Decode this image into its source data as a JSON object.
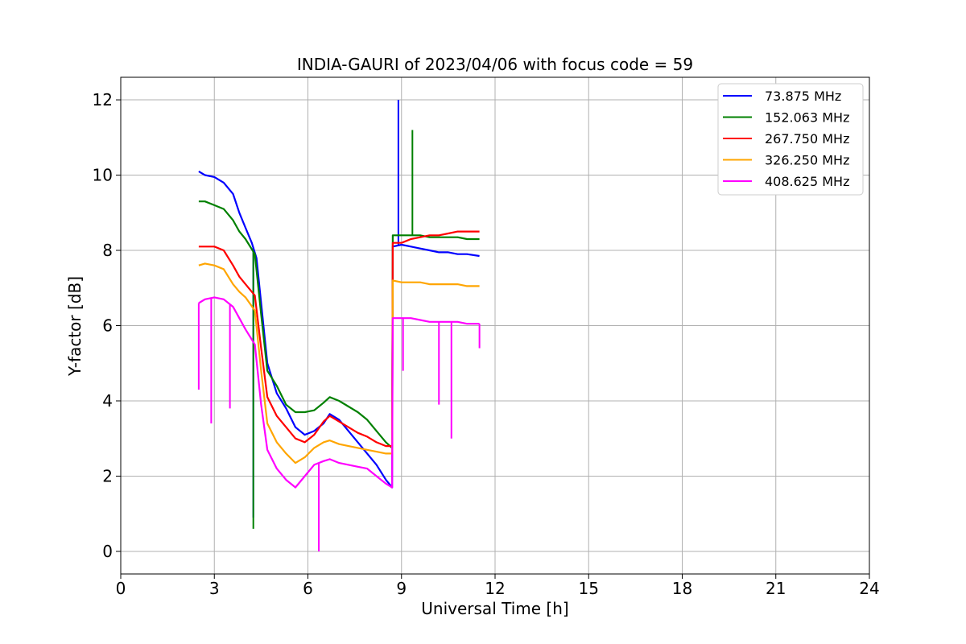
{
  "chart_data": {
    "type": "line",
    "title": "INDIA-GAURI of 2023/04/06 with focus code = 59",
    "xlabel": "Universal Time [h]",
    "ylabel": "Y-factor [dB]",
    "xlim": [
      0,
      24
    ],
    "ylim": [
      -0.6,
      12.6
    ],
    "xticks": [
      0,
      3,
      6,
      9,
      12,
      15,
      18,
      21,
      24
    ],
    "xtick_labels": [
      "0",
      "3",
      "6",
      "9",
      "12",
      "15",
      "18",
      "21",
      "24"
    ],
    "yticks": [
      0,
      2,
      4,
      6,
      8,
      10,
      12
    ],
    "ytick_labels": [
      "0",
      "2",
      "4",
      "6",
      "8",
      "10",
      "12"
    ],
    "grid": true,
    "legend_position": "top-right",
    "series": [
      {
        "name": " 73.875 MHz",
        "color": "#0000ff",
        "points": [
          [
            2.5,
            10.1
          ],
          [
            2.7,
            10.0
          ],
          [
            3.0,
            9.95
          ],
          [
            3.3,
            9.8
          ],
          [
            3.6,
            9.5
          ],
          [
            3.8,
            9.0
          ],
          [
            4.0,
            8.6
          ],
          [
            4.2,
            8.2
          ],
          [
            4.35,
            7.8
          ],
          [
            4.5,
            6.6
          ],
          [
            4.7,
            5.0
          ],
          [
            5.0,
            4.2
          ],
          [
            5.3,
            3.8
          ],
          [
            5.6,
            3.3
          ],
          [
            5.9,
            3.1
          ],
          [
            6.2,
            3.2
          ],
          [
            6.5,
            3.4
          ],
          [
            6.7,
            3.65
          ],
          [
            7.0,
            3.5
          ],
          [
            7.3,
            3.2
          ],
          [
            7.6,
            2.9
          ],
          [
            7.9,
            2.6
          ],
          [
            8.2,
            2.3
          ],
          [
            8.5,
            1.9
          ],
          [
            8.7,
            1.7
          ],
          [
            8.72,
            8.1
          ],
          [
            9.0,
            8.15
          ],
          [
            9.3,
            8.1
          ],
          [
            9.6,
            8.05
          ],
          [
            9.9,
            8.0
          ],
          [
            10.2,
            7.95
          ],
          [
            10.5,
            7.95
          ],
          [
            10.8,
            7.9
          ],
          [
            11.1,
            7.9
          ],
          [
            11.5,
            7.85
          ]
        ],
        "spikes": [
          [
            8.9,
            12.0
          ],
          [
            4.25,
            0.9
          ]
        ]
      },
      {
        "name": "152.063 MHz",
        "color": "#008000",
        "points": [
          [
            2.5,
            9.3
          ],
          [
            2.7,
            9.3
          ],
          [
            3.0,
            9.2
          ],
          [
            3.3,
            9.1
          ],
          [
            3.6,
            8.8
          ],
          [
            3.8,
            8.5
          ],
          [
            4.0,
            8.3
          ],
          [
            4.3,
            7.9
          ],
          [
            4.5,
            6.3
          ],
          [
            4.7,
            4.8
          ],
          [
            5.0,
            4.4
          ],
          [
            5.3,
            3.9
          ],
          [
            5.6,
            3.7
          ],
          [
            5.9,
            3.7
          ],
          [
            6.2,
            3.75
          ],
          [
            6.5,
            3.95
          ],
          [
            6.7,
            4.1
          ],
          [
            7.0,
            4.0
          ],
          [
            7.3,
            3.85
          ],
          [
            7.6,
            3.7
          ],
          [
            7.9,
            3.5
          ],
          [
            8.2,
            3.2
          ],
          [
            8.5,
            2.9
          ],
          [
            8.7,
            2.75
          ],
          [
            8.72,
            8.4
          ],
          [
            9.0,
            8.4
          ],
          [
            9.3,
            8.4
          ],
          [
            9.6,
            8.4
          ],
          [
            9.9,
            8.35
          ],
          [
            10.2,
            8.35
          ],
          [
            10.5,
            8.35
          ],
          [
            10.8,
            8.35
          ],
          [
            11.1,
            8.3
          ],
          [
            11.5,
            8.3
          ]
        ],
        "spikes": [
          [
            9.35,
            11.2
          ],
          [
            4.25,
            0.6
          ]
        ]
      },
      {
        "name": "267.750 MHz",
        "color": "#ff0000",
        "points": [
          [
            2.5,
            8.1
          ],
          [
            2.7,
            8.1
          ],
          [
            3.0,
            8.1
          ],
          [
            3.3,
            8.0
          ],
          [
            3.6,
            7.6
          ],
          [
            3.8,
            7.3
          ],
          [
            4.0,
            7.1
          ],
          [
            4.3,
            6.8
          ],
          [
            4.5,
            5.4
          ],
          [
            4.7,
            4.1
          ],
          [
            5.0,
            3.6
          ],
          [
            5.3,
            3.3
          ],
          [
            5.6,
            3.0
          ],
          [
            5.9,
            2.9
          ],
          [
            6.2,
            3.1
          ],
          [
            6.5,
            3.45
          ],
          [
            6.7,
            3.6
          ],
          [
            7.0,
            3.45
          ],
          [
            7.3,
            3.3
          ],
          [
            7.6,
            3.15
          ],
          [
            7.9,
            3.05
          ],
          [
            8.2,
            2.9
          ],
          [
            8.5,
            2.8
          ],
          [
            8.7,
            2.8
          ],
          [
            8.72,
            8.2
          ],
          [
            9.0,
            8.2
          ],
          [
            9.3,
            8.3
          ],
          [
            9.6,
            8.35
          ],
          [
            9.9,
            8.4
          ],
          [
            10.2,
            8.4
          ],
          [
            10.5,
            8.45
          ],
          [
            10.8,
            8.5
          ],
          [
            11.1,
            8.5
          ],
          [
            11.5,
            8.5
          ]
        ],
        "spikes": []
      },
      {
        "name": "326.250 MHz",
        "color": "#ffa500",
        "points": [
          [
            2.5,
            7.6
          ],
          [
            2.7,
            7.65
          ],
          [
            3.0,
            7.6
          ],
          [
            3.3,
            7.5
          ],
          [
            3.6,
            7.1
          ],
          [
            3.8,
            6.9
          ],
          [
            4.0,
            6.75
          ],
          [
            4.3,
            6.4
          ],
          [
            4.5,
            4.8
          ],
          [
            4.7,
            3.4
          ],
          [
            5.0,
            2.9
          ],
          [
            5.3,
            2.6
          ],
          [
            5.6,
            2.35
          ],
          [
            5.9,
            2.5
          ],
          [
            6.2,
            2.75
          ],
          [
            6.5,
            2.9
          ],
          [
            6.7,
            2.95
          ],
          [
            7.0,
            2.85
          ],
          [
            7.3,
            2.8
          ],
          [
            7.6,
            2.75
          ],
          [
            7.9,
            2.7
          ],
          [
            8.2,
            2.65
          ],
          [
            8.5,
            2.6
          ],
          [
            8.7,
            2.6
          ],
          [
            8.72,
            7.2
          ],
          [
            9.0,
            7.15
          ],
          [
            9.3,
            7.15
          ],
          [
            9.6,
            7.15
          ],
          [
            9.9,
            7.1
          ],
          [
            10.2,
            7.1
          ],
          [
            10.5,
            7.1
          ],
          [
            10.8,
            7.1
          ],
          [
            11.1,
            7.05
          ],
          [
            11.5,
            7.05
          ]
        ],
        "spikes": []
      },
      {
        "name": "408.625 MHz",
        "color": "#ff00ff",
        "points": [
          [
            2.5,
            6.6
          ],
          [
            2.7,
            6.7
          ],
          [
            3.0,
            6.75
          ],
          [
            3.3,
            6.7
          ],
          [
            3.6,
            6.5
          ],
          [
            3.8,
            6.2
          ],
          [
            4.0,
            5.9
          ],
          [
            4.3,
            5.5
          ],
          [
            4.5,
            3.9
          ],
          [
            4.7,
            2.7
          ],
          [
            5.0,
            2.2
          ],
          [
            5.3,
            1.9
          ],
          [
            5.6,
            1.7
          ],
          [
            5.9,
            2.0
          ],
          [
            6.2,
            2.3
          ],
          [
            6.5,
            2.4
          ],
          [
            6.7,
            2.45
          ],
          [
            7.0,
            2.35
          ],
          [
            7.3,
            2.3
          ],
          [
            7.6,
            2.25
          ],
          [
            7.9,
            2.2
          ],
          [
            8.2,
            2.0
          ],
          [
            8.5,
            1.8
          ],
          [
            8.7,
            1.7
          ],
          [
            8.72,
            6.2
          ],
          [
            9.0,
            6.2
          ],
          [
            9.3,
            6.2
          ],
          [
            9.6,
            6.15
          ],
          [
            9.9,
            6.1
          ],
          [
            10.2,
            6.1
          ],
          [
            10.5,
            6.1
          ],
          [
            10.8,
            6.1
          ],
          [
            11.1,
            6.05
          ],
          [
            11.5,
            6.05
          ]
        ],
        "spikes": [
          [
            2.5,
            4.3
          ],
          [
            2.9,
            3.4
          ],
          [
            3.5,
            3.8
          ],
          [
            6.35,
            0.0
          ],
          [
            9.05,
            4.8
          ],
          [
            10.2,
            3.9
          ],
          [
            10.6,
            3.0
          ],
          [
            11.5,
            5.4
          ]
        ]
      }
    ]
  }
}
